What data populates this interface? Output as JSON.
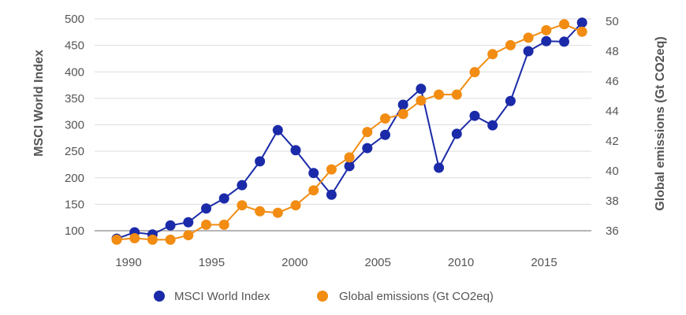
{
  "chart_data": {
    "type": "line",
    "title": "",
    "xlabel": "",
    "ylabel": "MSCI World Index",
    "y2label": "Global emissions (Gt CO2eq)",
    "x": [
      1990,
      1991,
      1992,
      1993,
      1994,
      1995,
      1996,
      1997,
      1998,
      1999,
      2000,
      2001,
      2002,
      2003,
      2004,
      2005,
      2006,
      2007,
      2008,
      2009,
      2010,
      2011,
      2012,
      2013,
      2014,
      2015,
      2016
    ],
    "x_ticks": [
      "1990",
      "1995",
      "2000",
      "2005",
      "2010",
      "2015"
    ],
    "x_tick_years": [
      1990,
      1995,
      2000,
      2005,
      2010,
      2015
    ],
    "ylim": [
      100,
      500
    ],
    "y_ticks": [
      "100",
      "150",
      "200",
      "250",
      "300",
      "350",
      "400",
      "450",
      "500"
    ],
    "y_tick_values": [
      100,
      150,
      200,
      250,
      300,
      350,
      400,
      450,
      500
    ],
    "y2lim": [
      36,
      50
    ],
    "y2_ticks": [
      "36",
      "38",
      "40",
      "42",
      "44",
      "46",
      "48",
      "50"
    ],
    "y2_tick_values": [
      36,
      38,
      40,
      42,
      44,
      46,
      48,
      50
    ],
    "grid": true,
    "legend_position": "bottom",
    "series": [
      {
        "name": "MSCI World Index",
        "axis": "left",
        "color": "#1a2aa8",
        "values": [
          85,
          97,
          93,
          110,
          116,
          142,
          161,
          186,
          231,
          290,
          252,
          209,
          168,
          222,
          256,
          281,
          338,
          368,
          219,
          283,
          317,
          299,
          345,
          439,
          458,
          457,
          493
        ]
      },
      {
        "name": "Global emissions (Gt CO2eq)",
        "axis": "right",
        "color": "#f28c12",
        "values": [
          35.4,
          35.5,
          35.4,
          35.4,
          35.7,
          36.4,
          36.4,
          37.7,
          37.3,
          37.2,
          37.7,
          38.7,
          40.1,
          40.9,
          42.6,
          43.5,
          43.8,
          44.7,
          45.1,
          45.1,
          46.6,
          47.8,
          48.4,
          48.9,
          49.4,
          49.8,
          49.3
        ]
      }
    ]
  }
}
